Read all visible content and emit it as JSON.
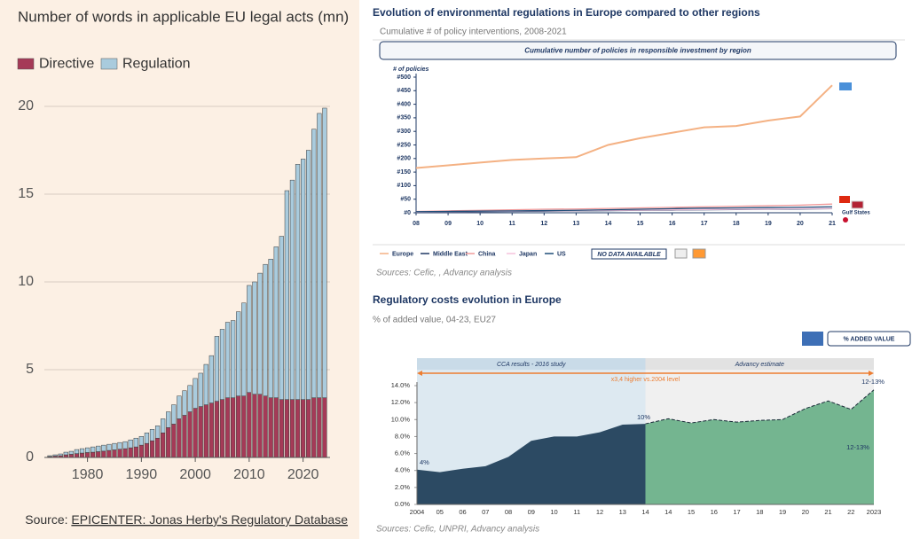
{
  "chart_data": [
    {
      "type": "bar",
      "title": "Number of words in applicable EU legal acts (mn)",
      "x": [
        1973,
        1974,
        1975,
        1976,
        1977,
        1978,
        1979,
        1980,
        1981,
        1982,
        1983,
        1984,
        1985,
        1986,
        1987,
        1988,
        1989,
        1990,
        1991,
        1992,
        1993,
        1994,
        1995,
        1996,
        1997,
        1998,
        1999,
        2000,
        2001,
        2002,
        2003,
        2004,
        2005,
        2006,
        2007,
        2008,
        2009,
        2010,
        2011,
        2012,
        2013,
        2014,
        2015,
        2016,
        2017,
        2018,
        2019,
        2020,
        2021,
        2022,
        2023,
        2024
      ],
      "series": [
        {
          "name": "Directive",
          "color": "#a53a57",
          "values": [
            0.05,
            0.08,
            0.1,
            0.15,
            0.18,
            0.22,
            0.25,
            0.28,
            0.3,
            0.33,
            0.36,
            0.4,
            0.43,
            0.47,
            0.5,
            0.55,
            0.6,
            0.7,
            0.8,
            0.95,
            1.1,
            1.4,
            1.7,
            1.9,
            2.2,
            2.4,
            2.6,
            2.8,
            2.9,
            3.0,
            3.1,
            3.2,
            3.3,
            3.4,
            3.4,
            3.5,
            3.5,
            3.7,
            3.6,
            3.6,
            3.5,
            3.4,
            3.4,
            3.3,
            3.3,
            3.3,
            3.3,
            3.3,
            3.3,
            3.4,
            3.4,
            3.4
          ]
        },
        {
          "name": "Regulation",
          "color": "#a9cbdd",
          "values": [
            0.05,
            0.07,
            0.1,
            0.15,
            0.17,
            0.23,
            0.25,
            0.27,
            0.3,
            0.32,
            0.34,
            0.35,
            0.37,
            0.38,
            0.4,
            0.45,
            0.5,
            0.5,
            0.6,
            0.65,
            0.7,
            0.8,
            0.9,
            1.1,
            1.3,
            1.4,
            1.5,
            1.7,
            1.9,
            2.3,
            2.7,
            3.7,
            4.0,
            4.3,
            4.4,
            4.8,
            5.3,
            6.1,
            6.4,
            6.9,
            7.5,
            7.9,
            8.6,
            9.3,
            11.9,
            12.5,
            13.4,
            13.7,
            14.2,
            15.3,
            16.2,
            16.5
          ]
        }
      ],
      "xlim": [
        1972,
        2025
      ],
      "xticks": [
        1980,
        1990,
        2000,
        2010,
        2020
      ],
      "ylim": [
        0,
        20
      ],
      "yticks": [
        0,
        5,
        10,
        15,
        20
      ],
      "grid": true,
      "source": "Source:",
      "source_link": "EPICENTER: Jonas Herby's Regulatory Database"
    },
    {
      "type": "line",
      "title": "Evolution of environmental regulations in Europe compared to other regions",
      "subtitle": "Cumulative # of policy interventions, 2008-2021",
      "box_label": "Cumulative number of policies in responsible investment by region",
      "y_label": "# of policies",
      "x": [
        2008,
        2009,
        2010,
        2011,
        2012,
        2013,
        2014,
        2015,
        2016,
        2017,
        2018,
        2019,
        2020,
        2021
      ],
      "series": [
        {
          "name": "Europe",
          "color": "#f4b183",
          "values": [
            165,
            175,
            185,
            195,
            200,
            205,
            250,
            275,
            295,
            315,
            320,
            340,
            355,
            470
          ]
        },
        {
          "name": "Middle East",
          "color": "#1f3864",
          "values": [
            2,
            3,
            4,
            5,
            6,
            7,
            8,
            9,
            10,
            11,
            12,
            13,
            14,
            15
          ]
        },
        {
          "name": "China",
          "color": "#f19a9a",
          "values": [
            5,
            7,
            9,
            11,
            13,
            14,
            16,
            18,
            20,
            22,
            24,
            26,
            28,
            32
          ]
        },
        {
          "name": "Japan",
          "color": "#f5c3dc",
          "values": [
            3,
            4,
            5,
            6,
            7,
            8,
            9,
            10,
            11,
            12,
            13,
            14,
            15,
            16
          ]
        },
        {
          "name": "US",
          "color": "#1f4e79",
          "values": [
            4,
            5,
            6,
            7,
            8,
            9,
            11,
            13,
            15,
            17,
            18,
            19,
            20,
            22
          ]
        }
      ],
      "xlim": [
        2008,
        2021
      ],
      "xticks": [
        {
          "value": 2008,
          "label": "08"
        },
        {
          "value": 2009,
          "label": "09"
        },
        {
          "value": 2010,
          "label": "10"
        },
        {
          "value": 2011,
          "label": "11"
        },
        {
          "value": 2012,
          "label": "12"
        },
        {
          "value": 2013,
          "label": "13"
        },
        {
          "value": 2014,
          "label": "14"
        },
        {
          "value": 2015,
          "label": "15"
        },
        {
          "value": 2016,
          "label": "16"
        },
        {
          "value": 2017,
          "label": "17"
        },
        {
          "value": 2018,
          "label": "18"
        },
        {
          "value": 2019,
          "label": "19"
        },
        {
          "value": 2020,
          "label": "20"
        },
        {
          "value": 2021,
          "label": "21"
        }
      ],
      "ylim": [
        0,
        500
      ],
      "yticks": [
        {
          "value": 0,
          "label": "#0"
        },
        {
          "value": 50,
          "label": "#50"
        },
        {
          "value": 100,
          "label": "#100"
        },
        {
          "value": 150,
          "label": "#150"
        },
        {
          "value": 200,
          "label": "#200"
        },
        {
          "value": 250,
          "label": "#250"
        },
        {
          "value": 300,
          "label": "#300"
        },
        {
          "value": 350,
          "label": "#350"
        },
        {
          "value": 400,
          "label": "#400"
        },
        {
          "value": 450,
          "label": "#450"
        },
        {
          "value": 500,
          "label": "#500"
        }
      ],
      "annotation": "Gulf States",
      "no_data_label": "NO DATA AVAILABLE",
      "source": "Sources: Cefic, , Advancy analysis"
    },
    {
      "type": "area",
      "title": "Regulatory costs evolution in Europe",
      "subtitle": "% of added value, 04-23, EU27",
      "legend_box": "% ADDED VALUE",
      "categories": [
        "2004",
        "05",
        "06",
        "07",
        "08",
        "09",
        "10",
        "11",
        "12",
        "13",
        "14",
        "14",
        "15",
        "16",
        "17",
        "18",
        "19",
        "20",
        "21",
        "22",
        "2023"
      ],
      "series": [
        {
          "color": "#2c4a63",
          "values": [
            4.1,
            3.8,
            4.2,
            4.5,
            5.6,
            7.5,
            8.0,
            8.0,
            8.5,
            9.4,
            9.5,
            null,
            null,
            null,
            null,
            null,
            null,
            null,
            null,
            null,
            null
          ]
        },
        {
          "color": "#74b590",
          "values": [
            null,
            null,
            null,
            null,
            null,
            null,
            null,
            null,
            null,
            null,
            9.5,
            10.1,
            9.6,
            10.0,
            9.7,
            9.9,
            10.0,
            11.3,
            12.2,
            11.2,
            13.5
          ]
        }
      ],
      "ylim": [
        0,
        14
      ],
      "yticks": [
        {
          "value": 0,
          "label": "0.0%"
        },
        {
          "value": 2,
          "label": "2.0%"
        },
        {
          "value": 4,
          "label": "4.0%"
        },
        {
          "value": 6,
          "label": "6.0%"
        },
        {
          "value": 8,
          "label": "8.0%"
        },
        {
          "value": 10,
          "label": "10.0%"
        },
        {
          "value": 12,
          "label": "12.0%"
        },
        {
          "value": 14,
          "label": "14.0%"
        }
      ],
      "bands": [
        "CCA results - 2016 study",
        "Advancy estimate"
      ],
      "arrow_label": "x3,4 higher vs.2004 level",
      "annotations": [
        "4%",
        "10%",
        "12-13%",
        "12-13%"
      ],
      "source": "Sources: Cefic, UNPRI, Advancy analysis"
    }
  ]
}
